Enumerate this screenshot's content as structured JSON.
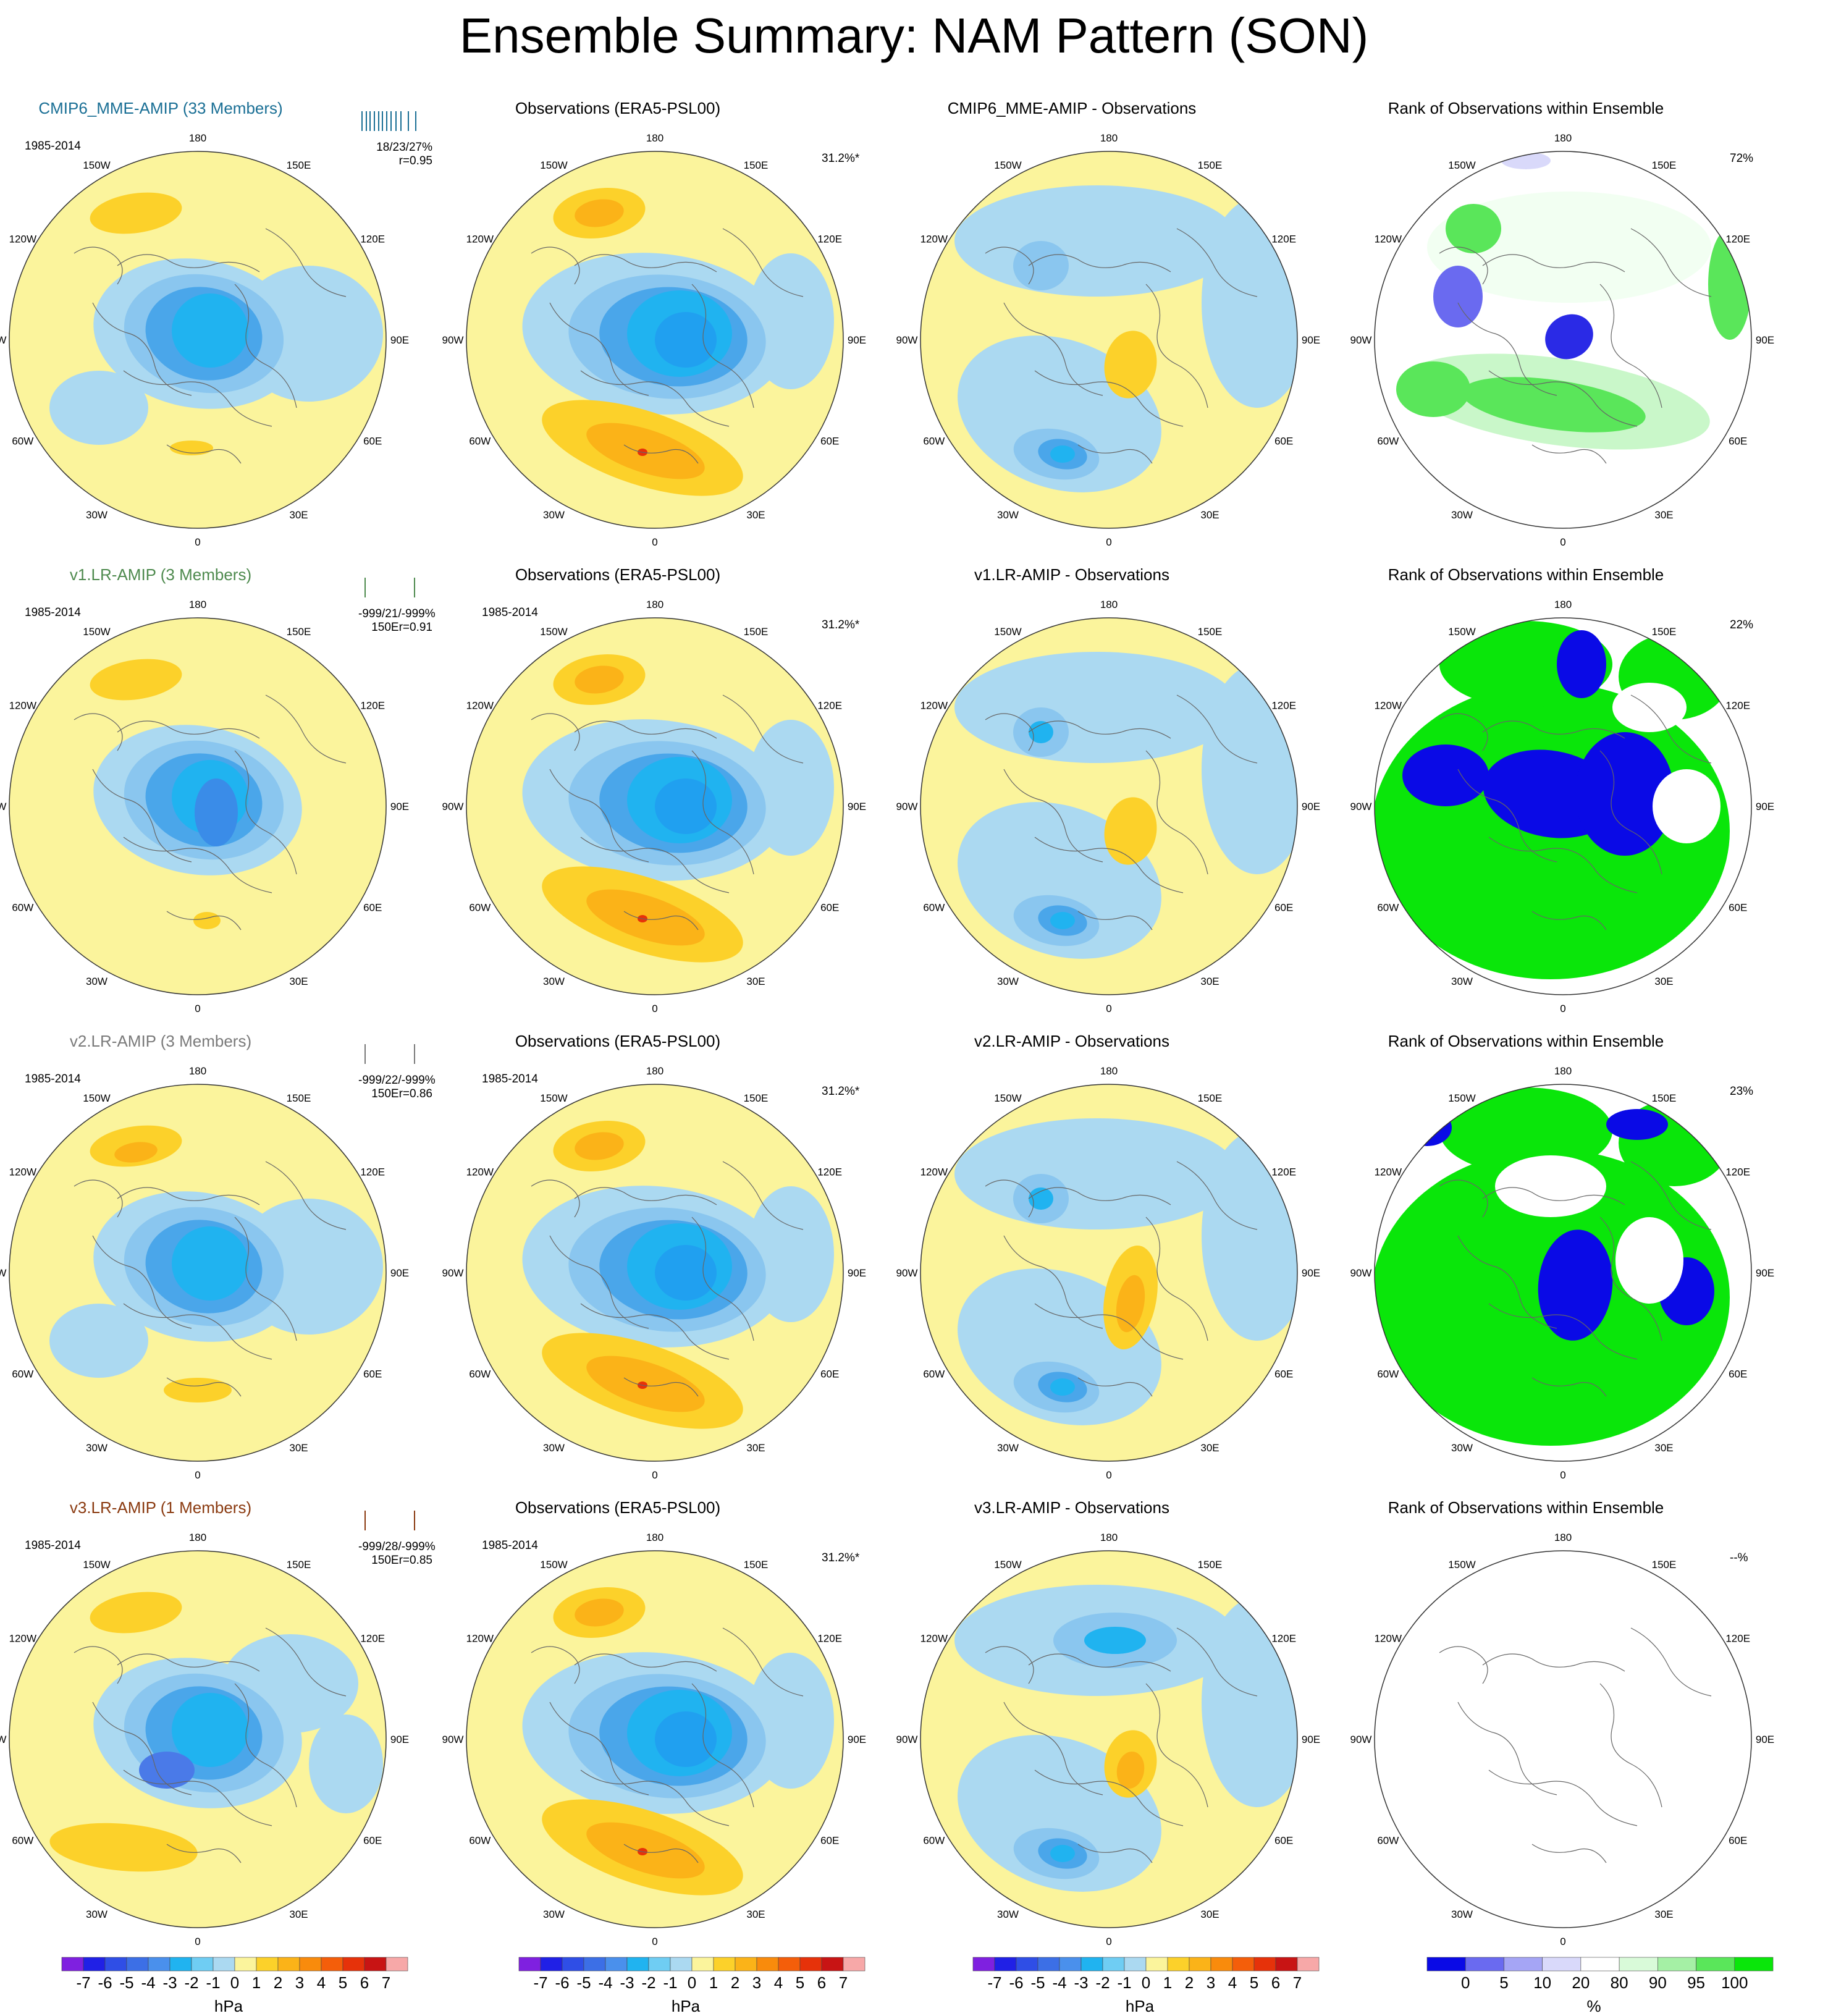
{
  "title": "Ensemble Summary: NAM Pattern (SON)",
  "period": "1985-2014",
  "lon_labels": [
    "180",
    "150E",
    "120E",
    "90E",
    "60E",
    "30E",
    "0",
    "30W",
    "60W",
    "90W",
    "120W",
    "150W"
  ],
  "colors": {
    "cmip6": "#1a6f95",
    "v1": "#4e8a4e",
    "v2": "#7a7a7a",
    "v3": "#8a3a10",
    "fill_yellow": "#fbf49c",
    "fill_lightblue": "#abd9f1"
  },
  "rows": [
    {
      "model": {
        "title": "CMIP6_MME-AMIP (33 Members)",
        "color_key": "cmip6",
        "stats": "18/23/27%",
        "corr": "r=0.95"
      },
      "obs": {
        "title": "Observations (ERA5-PSL00)",
        "pct": "31.2%*"
      },
      "diff": {
        "title": "CMIP6_MME-AMIP - Observations"
      },
      "rank": {
        "title": "Rank of Observations within Ensemble",
        "pct": "72%",
        "style": "cmip6"
      }
    },
    {
      "model": {
        "title": "v1.LR-AMIP (3 Members)",
        "color_key": "v1",
        "stats": "-999/21/-999%",
        "corr": "150Er=0.91"
      },
      "obs": {
        "title": "Observations (ERA5-PSL00)",
        "pct": "31.2%*"
      },
      "diff": {
        "title": "v1.LR-AMIP - Observations"
      },
      "rank": {
        "title": "Rank of Observations within Ensemble",
        "pct": "22%",
        "style": "v1"
      }
    },
    {
      "model": {
        "title": "v2.LR-AMIP (3 Members)",
        "color_key": "v2",
        "stats": "-999/22/-999%",
        "corr": "150Er=0.86"
      },
      "obs": {
        "title": "Observations (ERA5-PSL00)",
        "pct": "31.2%*"
      },
      "diff": {
        "title": "v2.LR-AMIP - Observations"
      },
      "rank": {
        "title": "Rank of Observations within Ensemble",
        "pct": "23%",
        "style": "v2"
      }
    },
    {
      "model": {
        "title": "v3.LR-AMIP (1 Members)",
        "color_key": "v3",
        "stats": "-999/28/-999%",
        "corr": "150Er=0.85"
      },
      "obs": {
        "title": "Observations (ERA5-PSL00)",
        "pct": "31.2%*"
      },
      "diff": {
        "title": "v3.LR-AMIP - Observations"
      },
      "rank": {
        "title": "Rank of Observations within Ensemble",
        "pct": "--%",
        "style": "empty"
      }
    }
  ],
  "colorbar_psl": {
    "unit": "hPa",
    "labels": [
      "-7",
      "-6",
      "-5",
      "-4",
      "-3",
      "-2",
      "-1",
      "0",
      "1",
      "2",
      "3",
      "4",
      "5",
      "6",
      "7"
    ],
    "colors": [
      "#7f20e0",
      "#2020e6",
      "#2f4ee6",
      "#3c6fe6",
      "#4a90ec",
      "#20b3f0",
      "#6fcdf3",
      "#abd9f1",
      "#fbf49c",
      "#fcd12a",
      "#fbb318",
      "#f98b0c",
      "#f45e0a",
      "#e6320a",
      "#c81414",
      "#f7a8a8"
    ]
  },
  "colorbar_rank": {
    "unit": "%",
    "labels": [
      "0",
      "5",
      "10",
      "20",
      "80",
      "90",
      "95",
      "100"
    ],
    "colors": [
      "#0a0ae6",
      "#6a6af0",
      "#a5a5f5",
      "#d9d9fa",
      "#ffffff",
      "#d9fad9",
      "#a5f0a5",
      "#5ae65a",
      "#0ae60a"
    ]
  }
}
